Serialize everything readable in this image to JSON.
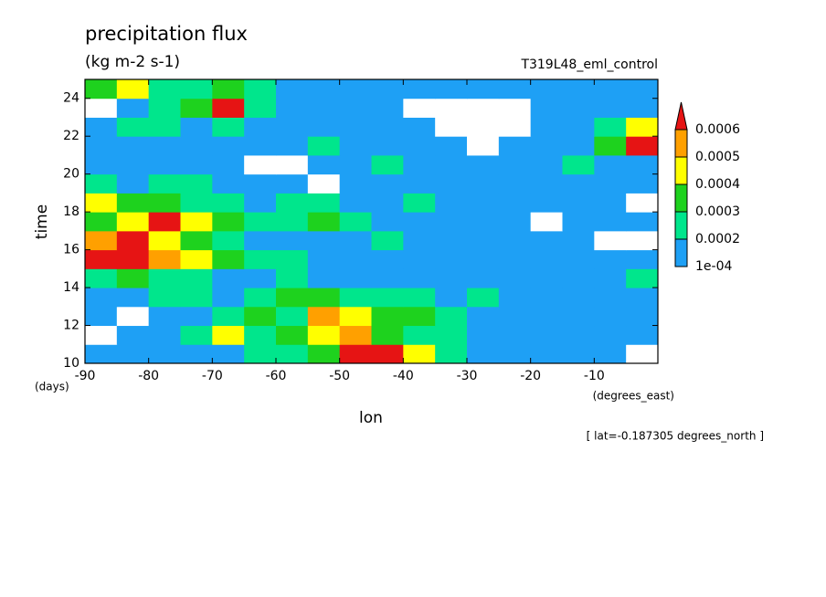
{
  "chart_data": {
    "type": "heatmap",
    "title": "precipitation flux",
    "subtitle": "(kg m-2 s-1)",
    "annotation": "T319L48_eml_control",
    "xlabel": "lon",
    "ylabel": "time",
    "xunit": "(degrees_east)",
    "yunit": "(days)",
    "footnote": "[ lat=-0.187305 degrees_north ]",
    "x": [
      -87.5,
      -82.5,
      -77.5,
      -72.5,
      -67.5,
      -62.5,
      -57.5,
      -52.5,
      -47.5,
      -42.5,
      -37.5,
      -32.5,
      -27.5,
      -22.5,
      -17.5,
      -12.5,
      -7.5,
      -2.5
    ],
    "y": [
      10.5,
      11.5,
      12.5,
      13.5,
      14.5,
      15.5,
      16.5,
      17.5,
      18.5,
      19.5,
      20.5,
      21.5,
      22.5,
      23.5,
      24.5
    ],
    "z": [
      [
        0.00015,
        0.00015,
        0.00015,
        0.00015,
        0.00015,
        0.00025,
        0.00025,
        0.00035,
        0.0007,
        0.0007,
        0.00045,
        0.00025,
        0.00015,
        0.00015,
        0.00015,
        0.00015,
        0.00015,
        0
      ],
      [
        0,
        0.00015,
        0.00015,
        0.00025,
        0.00045,
        0.00025,
        0.00035,
        0.00045,
        0.00055,
        0.00035,
        0.00025,
        0.00025,
        0.00015,
        0.00015,
        0.00015,
        0.00015,
        0.00015,
        0.00015
      ],
      [
        0.00015,
        0,
        0.00015,
        0.00015,
        0.00025,
        0.00035,
        0.00025,
        0.00055,
        0.00045,
        0.00035,
        0.00035,
        0.00025,
        0.00015,
        0.00015,
        0.00015,
        0.00015,
        0.00015,
        0.00015
      ],
      [
        0.00015,
        0.00015,
        0.00025,
        0.00025,
        0.00015,
        0.00025,
        0.00035,
        0.00035,
        0.00025,
        0.00025,
        0.00025,
        0.00015,
        0.00025,
        0.00015,
        0.00015,
        0.00015,
        0.00015,
        0.00015
      ],
      [
        0.00025,
        0.00035,
        0.00025,
        0.00025,
        0.00015,
        0.00015,
        0.00025,
        0.00015,
        0.00015,
        0.00015,
        0.00015,
        0.00015,
        0.00015,
        0.00015,
        0.00015,
        0.00015,
        0.00015,
        0.00025
      ],
      [
        0.0007,
        0.0007,
        0.00055,
        0.00045,
        0.00035,
        0.00025,
        0.00025,
        0.00015,
        0.00015,
        0.00015,
        0.00015,
        0.00015,
        0.00015,
        0.00015,
        0.00015,
        0.00015,
        0.00015,
        0.00015
      ],
      [
        0.00055,
        0.0007,
        0.00045,
        0.00035,
        0.00025,
        0.00015,
        0.00015,
        0.00015,
        0.00015,
        0.00025,
        0.00015,
        0.00015,
        0.00015,
        0.00015,
        0.00015,
        0.00015,
        0,
        0
      ],
      [
        0.00035,
        0.00045,
        0.0007,
        0.00045,
        0.00035,
        0.00025,
        0.00025,
        0.00035,
        0.00025,
        0.00015,
        0.00015,
        0.00015,
        0.00015,
        0.00015,
        0,
        0.00015,
        0.00015,
        0.00015
      ],
      [
        0.00045,
        0.00035,
        0.00035,
        0.00025,
        0.00025,
        0.00015,
        0.00025,
        0.00025,
        0.00015,
        0.00015,
        0.00025,
        0.00015,
        0.00015,
        0.00015,
        0.00015,
        0.00015,
        0.00015,
        0
      ],
      [
        0.00025,
        0.00015,
        0.00025,
        0.00025,
        0.00015,
        0.00015,
        0.00015,
        0,
        0.00015,
        0.00015,
        0.00015,
        0.00015,
        0.00015,
        0.00015,
        0.00015,
        0.00015,
        0.00015,
        0.00015
      ],
      [
        0.00015,
        0.00015,
        0.00015,
        0.00015,
        0.00015,
        0,
        0,
        0.00015,
        0.00015,
        0.00025,
        0.00015,
        0.00015,
        0.00015,
        0.00015,
        0.00015,
        0.00025,
        0.00015,
        0.00015
      ],
      [
        0.00015,
        0.00015,
        0.00015,
        0.00015,
        0.00015,
        0.00015,
        0.00015,
        0.00025,
        0.00015,
        0.00015,
        0.00015,
        0.00015,
        0,
        0.00015,
        0.00015,
        0.00015,
        0.00035,
        0.0007
      ],
      [
        0.00015,
        0.00025,
        0.00025,
        0.00015,
        0.00025,
        0.00015,
        0.00015,
        0.00015,
        0.00015,
        0.00015,
        0.00015,
        0,
        0,
        0,
        0.00015,
        0.00015,
        0.00025,
        0.00045
      ],
      [
        0,
        0.00015,
        0.00025,
        0.00035,
        0.0007,
        0.00025,
        0.00015,
        0.00015,
        0.00015,
        0.00015,
        0,
        0,
        0,
        0,
        0.00015,
        0.00015,
        0.00015,
        0.00015
      ],
      [
        0.00035,
        0.00045,
        0.00025,
        0.00025,
        0.00035,
        0.00025,
        0.00015,
        0.00015,
        0.00015,
        0.00015,
        0.00015,
        0.00015,
        0.00015,
        0.00015,
        0.00015,
        0.00015,
        0.00015,
        0.00015
      ]
    ],
    "xlim": [
      -90,
      0
    ],
    "ylim": [
      10,
      25
    ],
    "xticks": [
      -90,
      -80,
      -70,
      -60,
      -50,
      -40,
      -30,
      -20,
      -10
    ],
    "yticks": [
      10,
      12,
      14,
      16,
      18,
      20,
      22,
      24
    ],
    "levels": [
      {
        "value": 0.0001,
        "label": "1e-04"
      },
      0.0002,
      0.0003,
      0.0004,
      0.0005,
      0.0006
    ],
    "colors": [
      "#1ea0f5",
      "#00e68c",
      "#1ed21e",
      "#ffff00",
      "#ffa000",
      "#e61414"
    ]
  }
}
